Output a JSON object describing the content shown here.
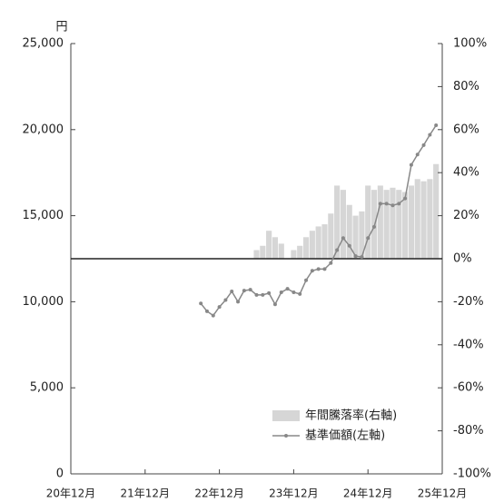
{
  "chart_data": {
    "type": "combo",
    "y_unit": "円",
    "xlim": [
      0,
      60
    ],
    "xticks": [
      {
        "value": 0,
        "label": "20年12月"
      },
      {
        "value": 12,
        "label": "21年12月"
      },
      {
        "value": 24,
        "label": "22年12月"
      },
      {
        "value": 36,
        "label": "23年12月"
      },
      {
        "value": 48,
        "label": "24年12月"
      },
      {
        "value": 60,
        "label": "25年12月"
      }
    ],
    "ylim": [
      0,
      25000
    ],
    "yticks": [
      {
        "value": 0,
        "label": "0"
      },
      {
        "value": 5000,
        "label": "5,000"
      },
      {
        "value": 10000,
        "label": "10,000"
      },
      {
        "value": 15000,
        "label": "15,000"
      },
      {
        "value": 20000,
        "label": "20,000"
      },
      {
        "value": 25000,
        "label": "25,000"
      }
    ],
    "y2lim": [
      -100,
      100
    ],
    "y2ticks": [
      {
        "value": -100,
        "label": "-100%"
      },
      {
        "value": -80,
        "label": "-80%"
      },
      {
        "value": -60,
        "label": "-60%"
      },
      {
        "value": -40,
        "label": "-40%"
      },
      {
        "value": -20,
        "label": "-20%"
      },
      {
        "value": 0,
        "label": "0%"
      },
      {
        "value": 20,
        "label": "20%"
      },
      {
        "value": 40,
        "label": "40%"
      },
      {
        "value": 60,
        "label": "60%"
      },
      {
        "value": 80,
        "label": "80%"
      },
      {
        "value": 100,
        "label": "100%"
      }
    ],
    "legend": "lower right",
    "series": [
      {
        "name": "年間騰落率(右軸)",
        "kind": "bar",
        "axis": "y2",
        "color": "#d6d6d6",
        "x": [
          30,
          31,
          32,
          33,
          34,
          35,
          36,
          37,
          38,
          39,
          40,
          41,
          42,
          43,
          44,
          45,
          46,
          47,
          48,
          49,
          50,
          51,
          52,
          53,
          54,
          55,
          56,
          57,
          58,
          59
        ],
        "values": [
          4,
          6,
          13,
          10,
          7,
          null,
          4,
          6,
          10,
          13,
          15,
          16,
          21,
          34,
          32,
          25,
          20,
          22,
          34,
          32,
          34,
          32,
          33,
          32,
          31,
          34,
          37,
          36,
          37,
          44
        ]
      },
      {
        "name": "基準価額(左軸)",
        "kind": "line",
        "color": "#888888",
        "x": [
          21,
          22,
          23,
          24,
          25,
          26,
          27,
          28,
          29,
          30,
          31,
          32,
          33,
          34,
          35,
          36,
          37,
          38,
          39,
          40,
          41,
          42,
          43,
          44,
          45,
          46,
          47,
          48,
          49,
          50,
          51,
          52,
          53,
          54,
          55,
          56,
          57,
          58,
          59
        ],
        "values": [
          9900,
          9450,
          9200,
          9700,
          10100,
          10600,
          10000,
          10650,
          10700,
          10400,
          10400,
          10500,
          9850,
          10550,
          10750,
          10550,
          10450,
          11250,
          11800,
          11900,
          11900,
          12250,
          13000,
          13700,
          13250,
          12650,
          12600,
          13700,
          14350,
          15700,
          15700,
          15600,
          15700,
          16000,
          17950,
          18550,
          19100,
          19700,
          20250
        ]
      }
    ]
  }
}
